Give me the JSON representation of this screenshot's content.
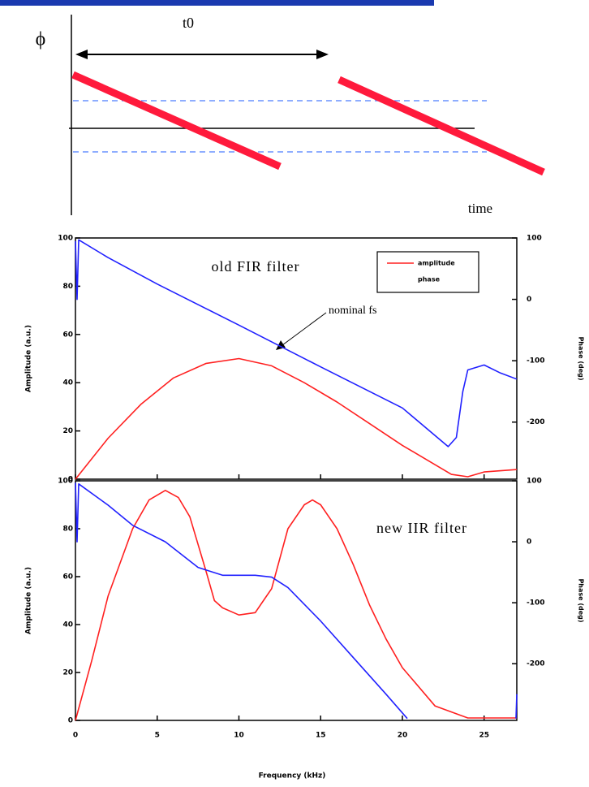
{
  "diagram": {
    "phi_label": "ϕ",
    "t0_label": "t0",
    "time_label": "time"
  },
  "chart_data": [
    {
      "type": "line",
      "title": "old FIR filter",
      "annotation": "nominal fs",
      "xlabel": "Frequency (kHz)",
      "ylabel": "Amplitude (a.u.)",
      "y2label": "Phase (deg)",
      "xlim": [
        0,
        27
      ],
      "xticks": [
        0,
        5,
        10,
        15,
        20,
        25
      ],
      "ylim": [
        0,
        100
      ],
      "yticks": [
        0,
        20,
        40,
        60,
        80,
        100
      ],
      "y2lim": [
        -293,
        100
      ],
      "y2ticks": [
        100,
        0,
        -100,
        -200
      ],
      "legend": "upper right",
      "series": [
        {
          "name": "amplitude",
          "color": "#ff2020",
          "x": [
            0,
            2,
            4,
            6,
            8,
            10,
            12,
            14,
            16,
            18,
            20,
            22,
            23,
            24,
            25,
            27
          ],
          "values": [
            0,
            17,
            31,
            42,
            48,
            50,
            47,
            40,
            32,
            23,
            14,
            6,
            2,
            1,
            3,
            4
          ]
        },
        {
          "name": "phase",
          "color": "#2020ff",
          "axis": "y2",
          "x": [
            0,
            0.1,
            0.2,
            2,
            5,
            10,
            15,
            20,
            22.8,
            23.3,
            23.7,
            24,
            25,
            26,
            27
          ],
          "values": [
            95,
            0,
            97,
            68,
            25,
            -42,
            -110,
            -177,
            -240,
            -225,
            -150,
            -115,
            -107,
            -120,
            -130
          ]
        }
      ]
    },
    {
      "type": "line",
      "title": "new IIR filter",
      "xlabel": "Frequency (kHz)",
      "ylabel": "Amplitude (a.u.)",
      "y2label": "Phase (deg)",
      "xlim": [
        0,
        27
      ],
      "xticks": [
        0,
        5,
        10,
        15,
        20,
        25
      ],
      "ylim": [
        0,
        100
      ],
      "yticks": [
        0,
        20,
        40,
        60,
        80,
        100
      ],
      "y2lim": [
        -293,
        100
      ],
      "y2ticks": [
        100,
        0,
        -100,
        -200
      ],
      "series": [
        {
          "color": "#ff2020",
          "x": [
            0,
            1,
            2,
            3.5,
            4.5,
            5.5,
            6.3,
            7,
            8,
            8.5,
            9,
            10,
            11,
            11.5,
            12,
            13,
            14,
            14.5,
            15,
            16,
            17,
            18,
            19,
            20,
            22,
            24,
            27
          ],
          "values": [
            0,
            25,
            52,
            80,
            92,
            96,
            93,
            85,
            62,
            50,
            47,
            44,
            45,
            50,
            55,
            80,
            90,
            92,
            90,
            80,
            65,
            48,
            34,
            22,
            6,
            1,
            1
          ]
        },
        {
          "color": "#2020ff",
          "axis": "y2",
          "x": [
            0,
            0.1,
            0.2,
            2,
            3.5,
            5.5,
            7.5,
            9,
            11,
            12,
            13,
            15,
            17,
            19,
            20.3,
            26.9,
            26.95,
            27
          ],
          "values": [
            97,
            0,
            95,
            60,
            27,
            0,
            -42,
            -55,
            -55,
            -58,
            -75,
            -130,
            -190,
            -250,
            -290,
            null,
            -290,
            -250
          ]
        }
      ]
    }
  ]
}
